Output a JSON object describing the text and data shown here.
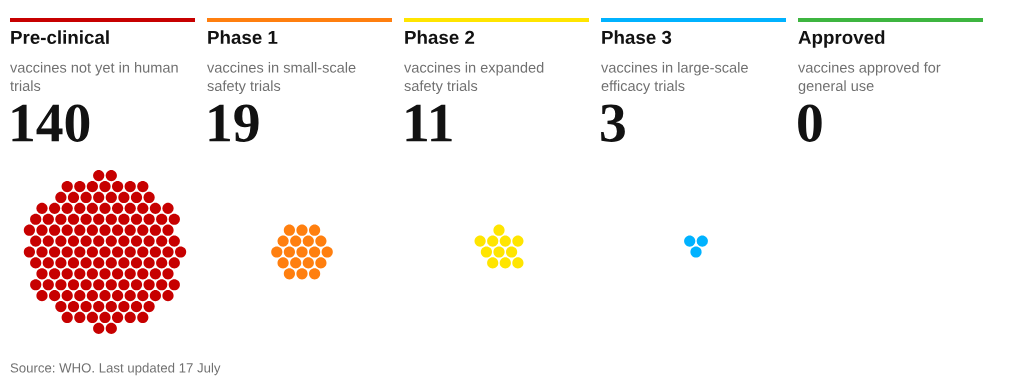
{
  "chart_data": {
    "type": "other",
    "categories": [
      "Pre-clinical",
      "Phase 1",
      "Phase 2",
      "Phase 3",
      "Approved"
    ],
    "values": [
      140,
      19,
      11,
      3,
      0
    ],
    "colors": [
      "#c70000",
      "#ff7f0f",
      "#ffe500",
      "#00b2ff",
      "#3db540"
    ],
    "data_labels": true,
    "annotations": [
      "vaccines not yet in human\ntrials",
      "vaccines in small-scale\nsafety trials",
      "vaccines in expanded\nsafety trials",
      "vaccines in large-scale\nefficacy trials",
      "vaccines approved for\ngeneral use",
      "Source: WHO. Last updated 17 July"
    ]
  }
}
